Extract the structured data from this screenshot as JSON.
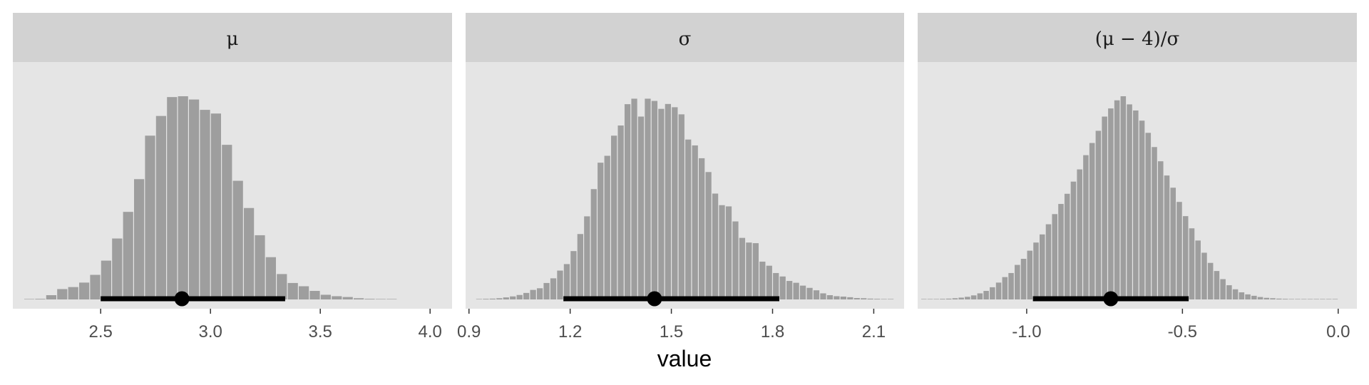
{
  "figure": {
    "xlabel": "value",
    "colors": {
      "panel_background": "#e5e5e5",
      "strip_background": "#d2d2d2",
      "bar_fill": "#9e9e9e",
      "interval": "#000000",
      "tick_label": "#4d4d4d"
    }
  },
  "chart_data": [
    {
      "type": "bar",
      "facet": "μ",
      "title": "μ",
      "xlim": [
        2.1,
        4.1
      ],
      "x_ticks": [
        2.5,
        3.0,
        3.5,
        4.0
      ],
      "x_tick_labels": [
        "2.5",
        "3.0",
        "3.5",
        "4.0"
      ],
      "ylim": [
        0,
        1
      ],
      "y_axis_shown": false,
      "bin_width": 0.05,
      "bin_centers": [
        2.175,
        2.225,
        2.275,
        2.325,
        2.375,
        2.425,
        2.475,
        2.525,
        2.575,
        2.625,
        2.675,
        2.725,
        2.775,
        2.825,
        2.875,
        2.925,
        2.975,
        3.025,
        3.075,
        3.125,
        3.175,
        3.225,
        3.275,
        3.325,
        3.375,
        3.425,
        3.475,
        3.525,
        3.575,
        3.625,
        3.675,
        3.725,
        3.775,
        3.825
      ],
      "values": [
        0.002,
        0.003,
        0.021,
        0.051,
        0.061,
        0.083,
        0.121,
        0.191,
        0.3,
        0.431,
        0.592,
        0.806,
        0.903,
        0.996,
        1.0,
        0.984,
        0.933,
        0.915,
        0.761,
        0.584,
        0.45,
        0.316,
        0.208,
        0.125,
        0.081,
        0.065,
        0.042,
        0.023,
        0.016,
        0.012,
        0.006,
        0.003,
        0.002,
        0.001
      ],
      "point_estimate": 2.87,
      "interval": [
        2.5,
        3.34
      ]
    },
    {
      "type": "bar",
      "facet": "σ",
      "title": "σ",
      "xlim": [
        0.89,
        2.19
      ],
      "x_ticks": [
        0.9,
        1.2,
        1.5,
        1.8,
        2.1
      ],
      "x_tick_labels": [
        "0.9",
        "1.2",
        "1.5",
        "1.8",
        "2.1"
      ],
      "ylim": [
        0,
        1
      ],
      "y_axis_shown": false,
      "bin_width": 0.02,
      "bin_centers": [
        0.93,
        0.95,
        0.97,
        0.99,
        1.01,
        1.03,
        1.05,
        1.07,
        1.09,
        1.11,
        1.13,
        1.15,
        1.17,
        1.19,
        1.21,
        1.23,
        1.25,
        1.27,
        1.29,
        1.31,
        1.33,
        1.35,
        1.37,
        1.39,
        1.41,
        1.43,
        1.45,
        1.47,
        1.49,
        1.51,
        1.53,
        1.55,
        1.57,
        1.59,
        1.61,
        1.63,
        1.65,
        1.67,
        1.69,
        1.71,
        1.73,
        1.75,
        1.77,
        1.79,
        1.81,
        1.83,
        1.85,
        1.87,
        1.89,
        1.91,
        1.93,
        1.95,
        1.97,
        1.99,
        2.01,
        2.03,
        2.05,
        2.07,
        2.09,
        2.11,
        2.13,
        2.15
      ],
      "values": [
        0.002,
        0.003,
        0.004,
        0.006,
        0.01,
        0.015,
        0.022,
        0.032,
        0.047,
        0.055,
        0.081,
        0.104,
        0.142,
        0.174,
        0.238,
        0.322,
        0.409,
        0.543,
        0.673,
        0.707,
        0.806,
        0.856,
        0.961,
        0.988,
        0.9,
        0.988,
        0.977,
        0.938,
        0.962,
        0.946,
        0.911,
        0.787,
        0.758,
        0.695,
        0.627,
        0.521,
        0.464,
        0.458,
        0.384,
        0.303,
        0.28,
        0.277,
        0.186,
        0.166,
        0.13,
        0.113,
        0.091,
        0.082,
        0.068,
        0.057,
        0.045,
        0.03,
        0.021,
        0.016,
        0.014,
        0.011,
        0.007,
        0.006,
        0.004,
        0.003,
        0.002,
        0.001
      ],
      "point_estimate": 1.45,
      "interval": [
        1.18,
        1.82
      ]
    },
    {
      "type": "bar",
      "facet": "(μ − 4)/σ",
      "title": "(μ − 4)/σ",
      "xlim": [
        -1.35,
        0.06
      ],
      "x_ticks": [
        -1.0,
        -0.5,
        0.0
      ],
      "x_tick_labels": [
        "-1.0",
        "-0.5",
        "0.0"
      ],
      "ylim": [
        0,
        1
      ],
      "y_axis_shown": false,
      "bin_width": 0.02,
      "bin_centers": [
        -1.33,
        -1.31,
        -1.29,
        -1.27,
        -1.25,
        -1.23,
        -1.21,
        -1.19,
        -1.17,
        -1.15,
        -1.13,
        -1.11,
        -1.09,
        -1.07,
        -1.05,
        -1.03,
        -1.01,
        -0.99,
        -0.97,
        -0.95,
        -0.93,
        -0.91,
        -0.89,
        -0.87,
        -0.85,
        -0.83,
        -0.81,
        -0.79,
        -0.77,
        -0.75,
        -0.73,
        -0.71,
        -0.69,
        -0.67,
        -0.65,
        -0.63,
        -0.61,
        -0.59,
        -0.57,
        -0.55,
        -0.53,
        -0.51,
        -0.49,
        -0.47,
        -0.45,
        -0.43,
        -0.41,
        -0.39,
        -0.37,
        -0.35,
        -0.33,
        -0.31,
        -0.29,
        -0.27,
        -0.25,
        -0.23,
        -0.21,
        -0.19,
        -0.17,
        -0.15,
        -0.13,
        -0.11,
        -0.09,
        -0.07,
        -0.05,
        -0.03,
        -0.01
      ],
      "values": [
        0.001,
        0.002,
        0.002,
        0.003,
        0.004,
        0.006,
        0.009,
        0.013,
        0.02,
        0.03,
        0.042,
        0.06,
        0.083,
        0.11,
        0.13,
        0.17,
        0.2,
        0.24,
        0.28,
        0.32,
        0.37,
        0.42,
        0.47,
        0.52,
        0.58,
        0.64,
        0.71,
        0.77,
        0.83,
        0.9,
        0.94,
        0.98,
        1.0,
        0.96,
        0.93,
        0.88,
        0.82,
        0.75,
        0.68,
        0.61,
        0.55,
        0.48,
        0.41,
        0.35,
        0.29,
        0.23,
        0.18,
        0.14,
        0.1,
        0.07,
        0.05,
        0.035,
        0.025,
        0.018,
        0.012,
        0.008,
        0.006,
        0.004,
        0.003,
        0.002,
        0.002,
        0.001,
        0.001,
        0.001,
        0.001,
        0.001,
        0.001
      ],
      "point_estimate": -0.73,
      "interval": [
        -0.98,
        -0.48
      ]
    }
  ]
}
